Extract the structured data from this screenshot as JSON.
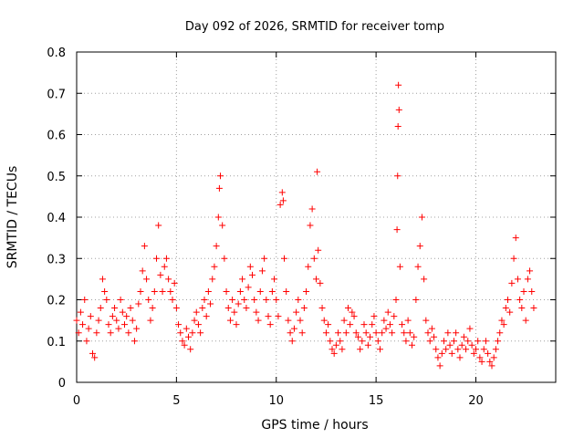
{
  "chart_data": {
    "type": "scatter",
    "title": "Day 092 of 2026, SRMTID for receiver tomp",
    "xlabel": "GPS time / hours",
    "ylabel": "SRMTID / TECUs",
    "xlim": [
      0,
      24
    ],
    "ylim": [
      0,
      0.8
    ],
    "x_ticks": [
      "0",
      "5",
      "10",
      "15",
      "20"
    ],
    "y_ticks": [
      "0",
      "0.1",
      "0.2",
      "0.3",
      "0.4",
      "0.5",
      "0.6",
      "0.7",
      "0.8"
    ],
    "grid": true,
    "marker": "+",
    "color": "#ff0000",
    "series": [
      {
        "name": "SRMTID",
        "points": [
          [
            0.0,
            0.15
          ],
          [
            0.1,
            0.12
          ],
          [
            0.2,
            0.17
          ],
          [
            0.3,
            0.14
          ],
          [
            0.4,
            0.2
          ],
          [
            0.5,
            0.1
          ],
          [
            0.6,
            0.13
          ],
          [
            0.7,
            0.16
          ],
          [
            0.8,
            0.07
          ],
          [
            0.9,
            0.06
          ],
          [
            1.0,
            0.12
          ],
          [
            1.1,
            0.15
          ],
          [
            1.2,
            0.18
          ],
          [
            1.3,
            0.25
          ],
          [
            1.4,
            0.22
          ],
          [
            1.5,
            0.2
          ],
          [
            1.6,
            0.14
          ],
          [
            1.7,
            0.12
          ],
          [
            1.8,
            0.16
          ],
          [
            1.9,
            0.18
          ],
          [
            2.0,
            0.15
          ],
          [
            2.1,
            0.13
          ],
          [
            2.2,
            0.2
          ],
          [
            2.3,
            0.17
          ],
          [
            2.4,
            0.14
          ],
          [
            2.5,
            0.16
          ],
          [
            2.6,
            0.12
          ],
          [
            2.7,
            0.18
          ],
          [
            2.8,
            0.15
          ],
          [
            2.9,
            0.1
          ],
          [
            3.0,
            0.13
          ],
          [
            3.1,
            0.19
          ],
          [
            3.2,
            0.22
          ],
          [
            3.3,
            0.27
          ],
          [
            3.4,
            0.33
          ],
          [
            3.5,
            0.25
          ],
          [
            3.6,
            0.2
          ],
          [
            3.7,
            0.15
          ],
          [
            3.8,
            0.18
          ],
          [
            3.9,
            0.22
          ],
          [
            4.0,
            0.3
          ],
          [
            4.1,
            0.38
          ],
          [
            4.2,
            0.26
          ],
          [
            4.3,
            0.22
          ],
          [
            4.4,
            0.28
          ],
          [
            4.5,
            0.3
          ],
          [
            4.6,
            0.25
          ],
          [
            4.7,
            0.22
          ],
          [
            4.8,
            0.2
          ],
          [
            4.9,
            0.24
          ],
          [
            5.0,
            0.18
          ],
          [
            5.1,
            0.14
          ],
          [
            5.2,
            0.12
          ],
          [
            5.3,
            0.1
          ],
          [
            5.4,
            0.09
          ],
          [
            5.5,
            0.13
          ],
          [
            5.6,
            0.11
          ],
          [
            5.7,
            0.08
          ],
          [
            5.8,
            0.12
          ],
          [
            5.9,
            0.15
          ],
          [
            6.0,
            0.17
          ],
          [
            6.1,
            0.14
          ],
          [
            6.2,
            0.12
          ],
          [
            6.3,
            0.18
          ],
          [
            6.4,
            0.2
          ],
          [
            6.5,
            0.16
          ],
          [
            6.6,
            0.22
          ],
          [
            6.7,
            0.19
          ],
          [
            6.8,
            0.25
          ],
          [
            6.9,
            0.28
          ],
          [
            7.0,
            0.33
          ],
          [
            7.1,
            0.4
          ],
          [
            7.15,
            0.47
          ],
          [
            7.2,
            0.5
          ],
          [
            7.3,
            0.38
          ],
          [
            7.4,
            0.3
          ],
          [
            7.5,
            0.22
          ],
          [
            7.6,
            0.18
          ],
          [
            7.7,
            0.15
          ],
          [
            7.8,
            0.2
          ],
          [
            7.9,
            0.17
          ],
          [
            8.0,
            0.14
          ],
          [
            8.1,
            0.19
          ],
          [
            8.2,
            0.22
          ],
          [
            8.3,
            0.25
          ],
          [
            8.4,
            0.2
          ],
          [
            8.5,
            0.18
          ],
          [
            8.6,
            0.23
          ],
          [
            8.7,
            0.28
          ],
          [
            8.8,
            0.26
          ],
          [
            8.9,
            0.2
          ],
          [
            9.0,
            0.17
          ],
          [
            9.1,
            0.15
          ],
          [
            9.2,
            0.22
          ],
          [
            9.3,
            0.27
          ],
          [
            9.4,
            0.3
          ],
          [
            9.5,
            0.2
          ],
          [
            9.6,
            0.16
          ],
          [
            9.7,
            0.14
          ],
          [
            9.8,
            0.22
          ],
          [
            9.9,
            0.25
          ],
          [
            10.0,
            0.2
          ],
          [
            10.1,
            0.16
          ],
          [
            10.2,
            0.43
          ],
          [
            10.3,
            0.46
          ],
          [
            10.35,
            0.44
          ],
          [
            10.4,
            0.3
          ],
          [
            10.5,
            0.22
          ],
          [
            10.6,
            0.15
          ],
          [
            10.7,
            0.12
          ],
          [
            10.8,
            0.1
          ],
          [
            10.9,
            0.13
          ],
          [
            11.0,
            0.17
          ],
          [
            11.1,
            0.2
          ],
          [
            11.2,
            0.15
          ],
          [
            11.3,
            0.12
          ],
          [
            11.4,
            0.18
          ],
          [
            11.5,
            0.22
          ],
          [
            11.6,
            0.28
          ],
          [
            11.7,
            0.38
          ],
          [
            11.8,
            0.42
          ],
          [
            11.9,
            0.3
          ],
          [
            12.0,
            0.25
          ],
          [
            12.05,
            0.51
          ],
          [
            12.1,
            0.32
          ],
          [
            12.2,
            0.24
          ],
          [
            12.3,
            0.18
          ],
          [
            12.4,
            0.15
          ],
          [
            12.5,
            0.12
          ],
          [
            12.6,
            0.14
          ],
          [
            12.7,
            0.1
          ],
          [
            12.8,
            0.08
          ],
          [
            12.9,
            0.07
          ],
          [
            13.0,
            0.09
          ],
          [
            13.1,
            0.12
          ],
          [
            13.2,
            0.1
          ],
          [
            13.3,
            0.08
          ],
          [
            13.4,
            0.15
          ],
          [
            13.5,
            0.12
          ],
          [
            13.6,
            0.18
          ],
          [
            13.7,
            0.14
          ],
          [
            13.8,
            0.17
          ],
          [
            13.9,
            0.16
          ],
          [
            14.0,
            0.12
          ],
          [
            14.1,
            0.11
          ],
          [
            14.2,
            0.08
          ],
          [
            14.3,
            0.1
          ],
          [
            14.4,
            0.14
          ],
          [
            14.5,
            0.12
          ],
          [
            14.6,
            0.09
          ],
          [
            14.7,
            0.11
          ],
          [
            14.8,
            0.14
          ],
          [
            14.9,
            0.16
          ],
          [
            15.0,
            0.12
          ],
          [
            15.1,
            0.1
          ],
          [
            15.2,
            0.08
          ],
          [
            15.3,
            0.12
          ],
          [
            15.4,
            0.15
          ],
          [
            15.5,
            0.13
          ],
          [
            15.6,
            0.17
          ],
          [
            15.7,
            0.14
          ],
          [
            15.8,
            0.12
          ],
          [
            15.9,
            0.16
          ],
          [
            16.0,
            0.2
          ],
          [
            16.05,
            0.37
          ],
          [
            16.08,
            0.5
          ],
          [
            16.1,
            0.62
          ],
          [
            16.12,
            0.72
          ],
          [
            16.15,
            0.66
          ],
          [
            16.2,
            0.28
          ],
          [
            16.3,
            0.14
          ],
          [
            16.4,
            0.12
          ],
          [
            16.5,
            0.1
          ],
          [
            16.6,
            0.15
          ],
          [
            16.7,
            0.12
          ],
          [
            16.8,
            0.09
          ],
          [
            16.9,
            0.11
          ],
          [
            17.0,
            0.2
          ],
          [
            17.1,
            0.28
          ],
          [
            17.2,
            0.33
          ],
          [
            17.3,
            0.4
          ],
          [
            17.4,
            0.25
          ],
          [
            17.5,
            0.15
          ],
          [
            17.6,
            0.12
          ],
          [
            17.7,
            0.1
          ],
          [
            17.8,
            0.13
          ],
          [
            17.9,
            0.11
          ],
          [
            18.0,
            0.08
          ],
          [
            18.1,
            0.06
          ],
          [
            18.2,
            0.04
          ],
          [
            18.3,
            0.07
          ],
          [
            18.4,
            0.1
          ],
          [
            18.5,
            0.08
          ],
          [
            18.6,
            0.12
          ],
          [
            18.7,
            0.09
          ],
          [
            18.8,
            0.07
          ],
          [
            18.9,
            0.1
          ],
          [
            19.0,
            0.12
          ],
          [
            19.1,
            0.08
          ],
          [
            19.2,
            0.06
          ],
          [
            19.3,
            0.09
          ],
          [
            19.4,
            0.11
          ],
          [
            19.5,
            0.08
          ],
          [
            19.6,
            0.1
          ],
          [
            19.7,
            0.13
          ],
          [
            19.8,
            0.09
          ],
          [
            19.9,
            0.07
          ],
          [
            20.0,
            0.08
          ],
          [
            20.1,
            0.1
          ],
          [
            20.2,
            0.06
          ],
          [
            20.3,
            0.05
          ],
          [
            20.4,
            0.08
          ],
          [
            20.5,
            0.1
          ],
          [
            20.6,
            0.07
          ],
          [
            20.7,
            0.05
          ],
          [
            20.8,
            0.04
          ],
          [
            20.9,
            0.06
          ],
          [
            21.0,
            0.08
          ],
          [
            21.1,
            0.1
          ],
          [
            21.2,
            0.12
          ],
          [
            21.3,
            0.15
          ],
          [
            21.4,
            0.14
          ],
          [
            21.5,
            0.18
          ],
          [
            21.6,
            0.2
          ],
          [
            21.7,
            0.17
          ],
          [
            21.8,
            0.24
          ],
          [
            21.9,
            0.3
          ],
          [
            22.0,
            0.35
          ],
          [
            22.1,
            0.25
          ],
          [
            22.2,
            0.2
          ],
          [
            22.3,
            0.18
          ],
          [
            22.4,
            0.22
          ],
          [
            22.5,
            0.15
          ],
          [
            22.6,
            0.25
          ],
          [
            22.7,
            0.27
          ],
          [
            22.8,
            0.22
          ],
          [
            22.9,
            0.18
          ]
        ]
      }
    ]
  }
}
